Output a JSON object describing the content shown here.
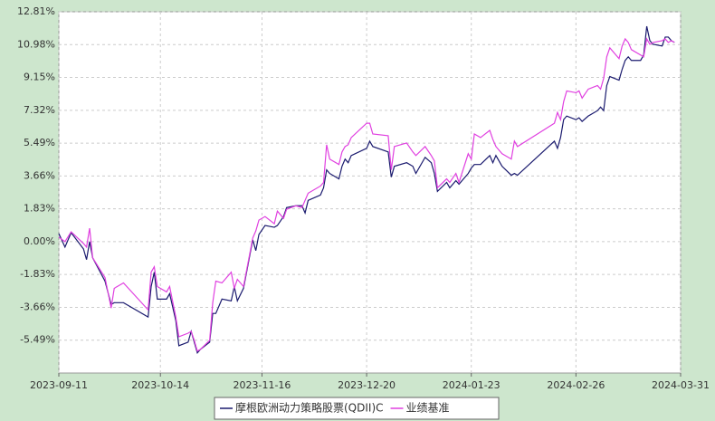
{
  "chart_data": {
    "type": "line",
    "x": [
      "2023-09-11",
      "2023-09-13",
      "2023-09-15",
      "2023-09-19",
      "2023-09-20",
      "2023-09-21",
      "2023-09-22",
      "2023-09-26",
      "2023-09-28",
      "2023-09-29",
      "2023-10-02",
      "2023-10-10",
      "2023-10-11",
      "2023-10-12",
      "2023-10-13",
      "2023-10-16",
      "2023-10-17",
      "2023-10-19",
      "2023-10-20",
      "2023-10-23",
      "2023-10-24",
      "2023-10-25",
      "2023-10-26",
      "2023-10-27",
      "2023-10-30",
      "2023-10-31",
      "2023-11-01",
      "2023-11-03",
      "2023-11-06",
      "2023-11-07",
      "2023-11-08",
      "2023-11-10",
      "2023-11-13",
      "2023-11-14",
      "2023-11-15",
      "2023-11-17",
      "2023-11-20",
      "2023-11-21",
      "2023-11-23",
      "2023-11-24",
      "2023-11-27",
      "2023-11-29",
      "2023-11-30",
      "2023-12-01",
      "2023-12-05",
      "2023-12-06",
      "2023-12-07",
      "2023-12-08",
      "2023-12-11",
      "2023-12-12",
      "2023-12-13",
      "2023-12-14",
      "2023-12-15",
      "2023-12-20",
      "2023-12-21",
      "2023-12-22",
      "2023-12-27",
      "2023-12-28",
      "2023-12-29",
      "2024-01-02",
      "2024-01-04",
      "2024-01-05",
      "2024-01-08",
      "2024-01-10",
      "2024-01-11",
      "2024-01-12",
      "2024-01-15",
      "2024-01-16",
      "2024-01-18",
      "2024-01-19",
      "2024-01-22",
      "2024-01-23",
      "2024-01-24",
      "2024-01-26",
      "2024-01-29",
      "2024-01-30",
      "2024-01-31",
      "2024-02-02",
      "2024-02-05",
      "2024-02-06",
      "2024-02-07",
      "2024-02-19",
      "2024-02-20",
      "2024-02-21",
      "2024-02-22",
      "2024-02-23",
      "2024-02-26",
      "2024-02-27",
      "2024-02-28",
      "2024-03-01",
      "2024-03-04",
      "2024-03-05",
      "2024-03-06",
      "2024-03-07",
      "2024-03-08",
      "2024-03-11",
      "2024-03-12",
      "2024-03-13",
      "2024-03-14",
      "2024-03-15",
      "2024-03-18",
      "2024-03-19",
      "2024-03-20",
      "2024-03-21",
      "2024-03-22",
      "2024-03-25",
      "2024-03-26",
      "2024-03-27",
      "2024-03-28",
      "2024-03-29"
    ],
    "series": [
      {
        "name": "摩根欧洲动力策略股票(QDII)C",
        "color": "#1a1a6e",
        "values": [
          0.45,
          -0.3,
          0.5,
          -0.4,
          -1.0,
          0.0,
          -0.9,
          -2.2,
          -3.5,
          -3.4,
          -3.4,
          -4.2,
          -2.5,
          -1.7,
          -3.2,
          -3.2,
          -2.9,
          -4.4,
          -5.8,
          -5.6,
          -5.0,
          -5.6,
          -6.2,
          -6.0,
          -5.6,
          -4.0,
          -4.0,
          -3.2,
          -3.3,
          -2.5,
          -3.3,
          -2.6,
          0.1,
          -0.5,
          0.4,
          0.9,
          0.8,
          0.9,
          1.4,
          1.9,
          2.0,
          2.0,
          1.6,
          2.3,
          2.6,
          3.0,
          4.0,
          3.8,
          3.5,
          4.2,
          4.6,
          4.4,
          4.8,
          5.2,
          5.6,
          5.3,
          5.0,
          3.6,
          4.2,
          4.4,
          4.2,
          3.8,
          4.7,
          4.4,
          3.8,
          2.8,
          3.3,
          3.0,
          3.4,
          3.2,
          3.8,
          4.1,
          4.3,
          4.3,
          4.8,
          4.4,
          4.8,
          4.2,
          3.7,
          3.8,
          3.7,
          5.6,
          5.2,
          5.8,
          6.8,
          7.0,
          6.8,
          6.9,
          6.7,
          7.0,
          7.3,
          7.5,
          7.3,
          8.7,
          9.2,
          9.0,
          9.6,
          10.1,
          10.3,
          10.1,
          10.1,
          10.4,
          12.0,
          11.2,
          11.0,
          10.9,
          11.4,
          11.4,
          11.2,
          11.1
        ]
      },
      {
        "name": "业绩基准",
        "color": "#e040e0",
        "values": [
          0.25,
          0.0,
          0.55,
          -0.1,
          -0.3,
          0.75,
          -0.9,
          -2.0,
          -3.7,
          -2.6,
          -2.3,
          -3.8,
          -1.7,
          -1.4,
          -2.5,
          -2.8,
          -2.5,
          -4.2,
          -5.3,
          -5.1,
          -5.0,
          -5.5,
          -6.1,
          -6.0,
          -5.5,
          -3.4,
          -2.2,
          -2.3,
          -1.7,
          -2.6,
          -2.1,
          -2.5,
          0.2,
          0.6,
          1.2,
          1.4,
          1.0,
          1.7,
          1.3,
          1.8,
          2.0,
          1.9,
          2.3,
          2.7,
          3.1,
          3.3,
          5.4,
          4.6,
          4.3,
          5.0,
          5.3,
          5.4,
          5.8,
          6.6,
          6.6,
          6.0,
          5.9,
          4.0,
          5.3,
          5.5,
          5.0,
          4.8,
          5.3,
          4.8,
          4.5,
          3.0,
          3.5,
          3.3,
          3.8,
          3.3,
          4.9,
          4.6,
          6.0,
          5.8,
          6.2,
          5.7,
          5.3,
          4.9,
          4.6,
          5.6,
          5.3,
          6.6,
          7.2,
          6.8,
          7.8,
          8.4,
          8.3,
          8.4,
          8.0,
          8.5,
          8.7,
          8.5,
          9.1,
          10.3,
          10.8,
          10.2,
          10.9,
          11.3,
          11.1,
          10.7,
          10.4,
          10.3,
          11.3,
          11.0,
          11.1,
          11.2,
          11.3,
          11.1,
          11.2,
          11.1
        ]
      }
    ],
    "xlim": [
      "2023-09-11",
      "2024-03-31"
    ],
    "xticks": [
      "2023-09-11",
      "2023-10-14",
      "2023-11-16",
      "2023-12-20",
      "2024-01-23",
      "2024-02-26",
      "2024-03-31"
    ],
    "ylim": [
      -7.32,
      12.81
    ],
    "yticks": [
      {
        "value": 12.81,
        "label": "12.81%"
      },
      {
        "value": 10.98,
        "label": "10.98%"
      },
      {
        "value": 9.15,
        "label": "9.15%"
      },
      {
        "value": 7.32,
        "label": "7.32%"
      },
      {
        "value": 5.49,
        "label": "5.49%"
      },
      {
        "value": 3.66,
        "label": "3.66%"
      },
      {
        "value": 1.83,
        "label": "1.83%"
      },
      {
        "value": 0.0,
        "label": "0.00%"
      },
      {
        "value": -1.83,
        "label": "-1.83%"
      },
      {
        "value": -3.66,
        "label": "-3.66%"
      },
      {
        "value": -5.49,
        "label": "-5.49%"
      }
    ],
    "grid": true
  }
}
